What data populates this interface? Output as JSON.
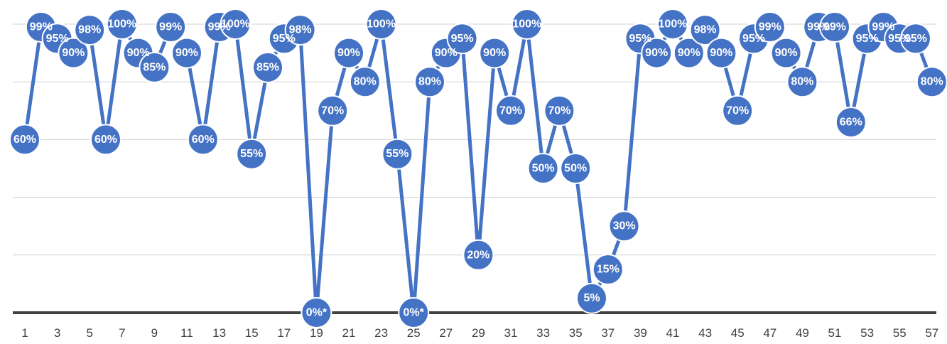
{
  "chart_data": {
    "type": "line",
    "x": [
      1,
      2,
      3,
      4,
      5,
      6,
      7,
      8,
      9,
      10,
      11,
      12,
      13,
      14,
      15,
      16,
      17,
      18,
      19,
      20,
      21,
      22,
      23,
      24,
      25,
      26,
      27,
      28,
      29,
      30,
      31,
      32,
      33,
      34,
      35,
      36,
      37,
      38,
      39,
      40,
      41,
      42,
      43,
      44,
      45,
      46,
      47,
      48,
      49,
      50,
      51,
      52,
      53,
      54,
      55,
      56,
      57
    ],
    "x_tick_labels": [
      "1",
      "3",
      "5",
      "7",
      "9",
      "11",
      "13",
      "15",
      "17",
      "19",
      "21",
      "23",
      "25",
      "27",
      "29",
      "31",
      "33",
      "35",
      "37",
      "39",
      "41",
      "43",
      "45",
      "47",
      "49",
      "51",
      "53",
      "55",
      "57"
    ],
    "series": [
      {
        "values": [
          60,
          99,
          95,
          90,
          98,
          60,
          100,
          90,
          85,
          99,
          90,
          60,
          99,
          100,
          55,
          85,
          95,
          98,
          0,
          70,
          90,
          80,
          100,
          55,
          0,
          80,
          90,
          95,
          20,
          90,
          70,
          100,
          50,
          70,
          50,
          5,
          15,
          30,
          95,
          90,
          100,
          90,
          98,
          90,
          70,
          95,
          99,
          90,
          80,
          99,
          99,
          66,
          95,
          99,
          95,
          95,
          80
        ],
        "data_labels": [
          "60%",
          "99%",
          "95%",
          "90%",
          "98%",
          "60%",
          "100%",
          "90%",
          "85%",
          "99%",
          "90%",
          "60%",
          "99%",
          "100%",
          "55%",
          "85%",
          "95%",
          "98%",
          "0%*",
          "70%",
          "90%",
          "80%",
          "100%",
          "55%",
          "0%*",
          "80%",
          "90%",
          "95%",
          "20%",
          "90%",
          "70%",
          "100%",
          "50%",
          "70%",
          "50%",
          "5%",
          "15%",
          "30%",
          "95%",
          "90%",
          "100%",
          "90%",
          "98%",
          "90%",
          "70%",
          "95%",
          "99%",
          "90%",
          "80%",
          "99%",
          "99%",
          "66%",
          "95%",
          "99%",
          "95%",
          "95%",
          "80%"
        ]
      }
    ],
    "ylim": [
      0,
      100
    ],
    "gridlines": true,
    "y_tick_labels_visible": false,
    "colors": {
      "series": "#4472C4",
      "grid": "#D0D0D0",
      "axis": "#404040"
    }
  }
}
